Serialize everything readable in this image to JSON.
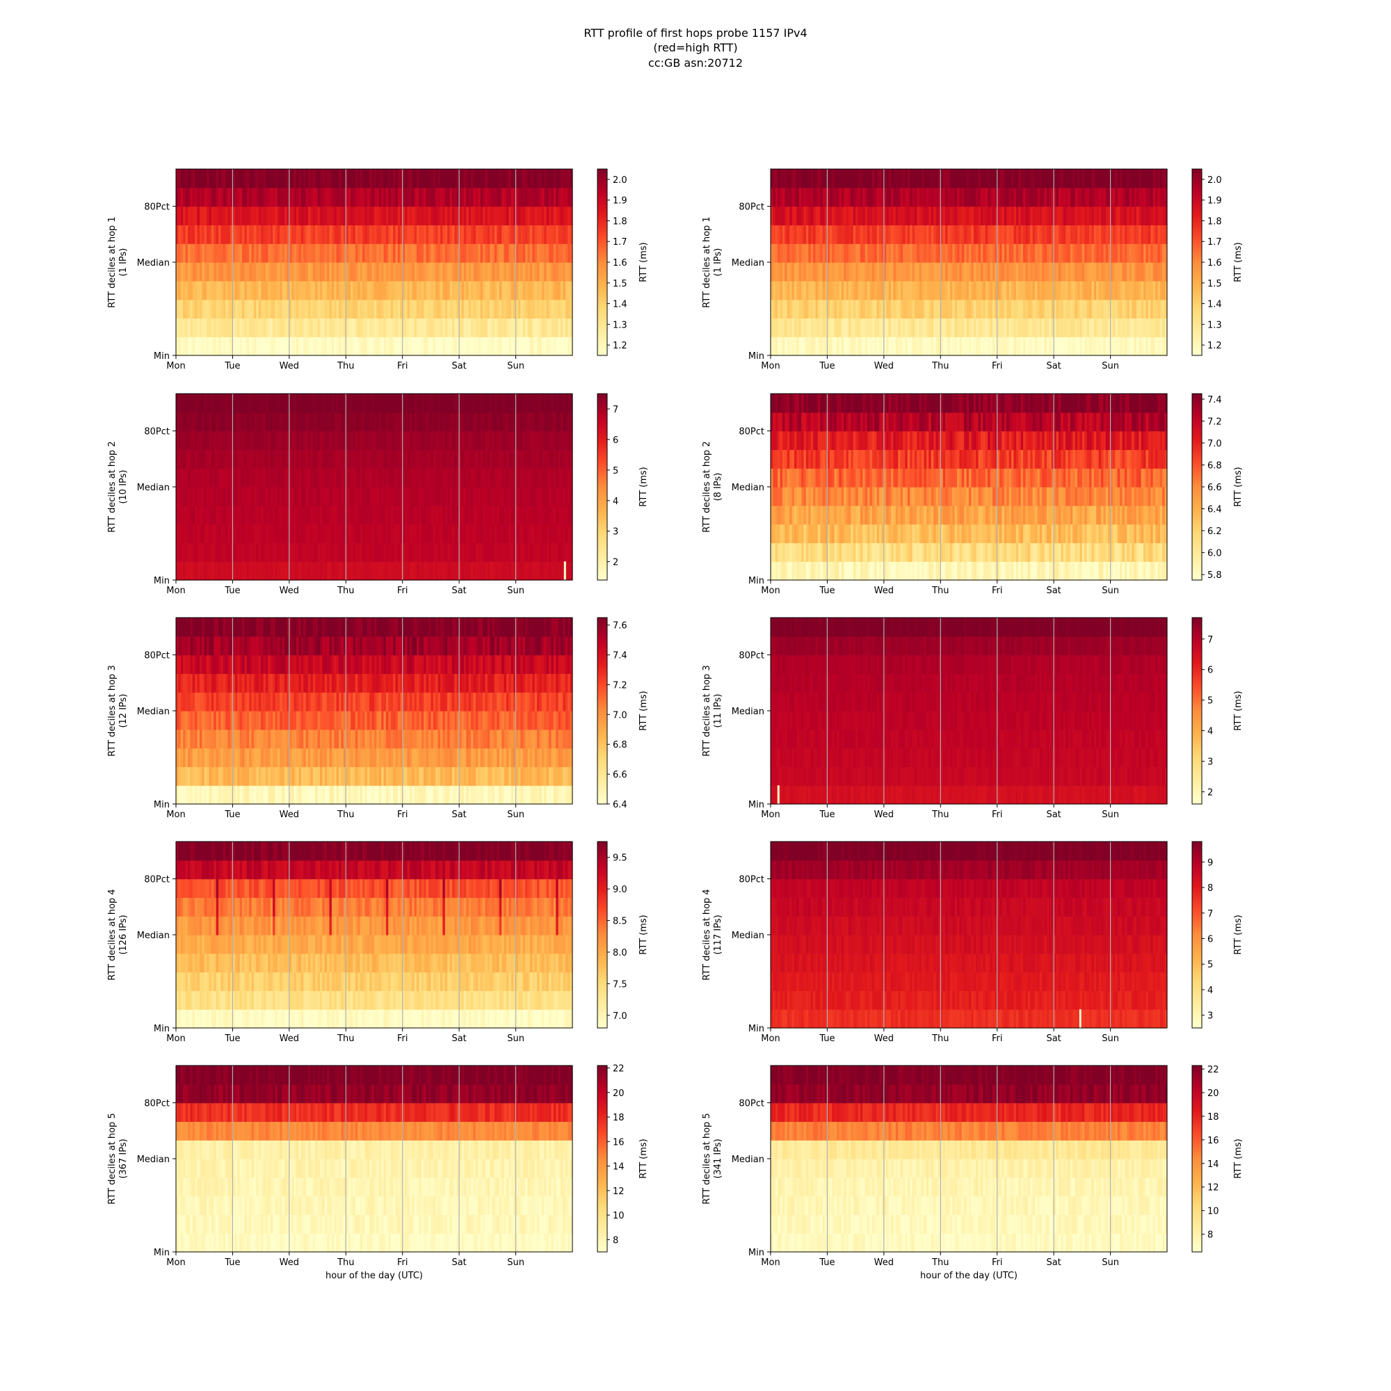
{
  "figure": {
    "title_lines": [
      "RTT profile of first hops probe 1157 IPv4",
      "(red=high RTT)",
      "cc:GB asn:20712"
    ]
  },
  "colors": {
    "colormap": [
      "#ffffcc",
      "#ffeda0",
      "#fed976",
      "#feb24c",
      "#fd8d3c",
      "#fc4e2a",
      "#e31a1c",
      "#bd0026",
      "#800026"
    ],
    "gridline": "#b0b0b0",
    "outlier": "#ffffcc"
  },
  "chart_data": [
    {
      "type": "heatmap",
      "row": 0,
      "col": 0,
      "hop": 1,
      "ylabel": [
        "RTT deciles at hop 1",
        "(1 IPs)"
      ],
      "xlabel": "",
      "xticks": [
        "Mon",
        "Tue",
        "Wed",
        "Thu",
        "Fri",
        "Sat",
        "Sun"
      ],
      "yticks": [
        "Min",
        "Median",
        "80Pct"
      ],
      "colorbar_label": "RTT (ms)",
      "colorbar_ticks": [
        "1.2",
        "1.3",
        "1.4",
        "1.5",
        "1.6",
        "1.7",
        "1.8",
        "1.9",
        "2.0"
      ],
      "range": [
        1.15,
        2.05
      ],
      "decile_fraction": [
        0.02,
        0.15,
        0.26,
        0.36,
        0.46,
        0.56,
        0.66,
        0.78,
        0.9,
        1.0
      ],
      "noise": 0.06,
      "weekly_dips": false,
      "outliers": []
    },
    {
      "type": "heatmap",
      "row": 0,
      "col": 1,
      "hop": 1,
      "ylabel": [
        "RTT deciles at hop 1",
        "(1 IPs)"
      ],
      "xlabel": "",
      "xticks": [
        "Mon",
        "Tue",
        "Wed",
        "Thu",
        "Fri",
        "Sat",
        "Sun"
      ],
      "yticks": [
        "Min",
        "Median",
        "80Pct"
      ],
      "colorbar_label": "RTT (ms)",
      "colorbar_ticks": [
        "1.2",
        "1.3",
        "1.4",
        "1.5",
        "1.6",
        "1.7",
        "1.8",
        "1.9",
        "2.0"
      ],
      "range": [
        1.15,
        2.05
      ],
      "decile_fraction": [
        0.03,
        0.16,
        0.27,
        0.37,
        0.47,
        0.57,
        0.67,
        0.79,
        0.9,
        1.0
      ],
      "noise": 0.06,
      "weekly_dips": false,
      "outliers": []
    },
    {
      "type": "heatmap",
      "row": 1,
      "col": 0,
      "hop": 2,
      "ylabel": [
        "RTT deciles at hop 2",
        "(10 IPs)"
      ],
      "xlabel": "",
      "xticks": [
        "Mon",
        "Tue",
        "Wed",
        "Thu",
        "Fri",
        "Sat",
        "Sun"
      ],
      "yticks": [
        "Min",
        "Median",
        "80Pct"
      ],
      "colorbar_label": "RTT (ms)",
      "colorbar_ticks": [
        "2",
        "3",
        "4",
        "5",
        "6",
        "7"
      ],
      "range": [
        1.4,
        7.5
      ],
      "decile_fraction": [
        0.82,
        0.86,
        0.87,
        0.88,
        0.89,
        0.9,
        0.92,
        0.94,
        0.97,
        1.0
      ],
      "noise": 0.02,
      "weekly_dips": false,
      "outliers": [
        {
          "day": 6.85,
          "decile": 0
        }
      ]
    },
    {
      "type": "heatmap",
      "row": 1,
      "col": 1,
      "hop": 2,
      "ylabel": [
        "RTT deciles at hop 2",
        "(8 IPs)"
      ],
      "xlabel": "",
      "xticks": [
        "Mon",
        "Tue",
        "Wed",
        "Thu",
        "Fri",
        "Sat",
        "Sun"
      ],
      "yticks": [
        "Min",
        "Median",
        "80Pct"
      ],
      "colorbar_label": "RTT (ms)",
      "colorbar_ticks": [
        "5.8",
        "6.0",
        "6.2",
        "6.4",
        "6.6",
        "6.8",
        "7.0",
        "7.2",
        "7.4"
      ],
      "range": [
        5.75,
        7.45
      ],
      "decile_fraction": [
        0.05,
        0.22,
        0.34,
        0.42,
        0.5,
        0.58,
        0.66,
        0.76,
        0.88,
        1.0
      ],
      "noise": 0.09,
      "weekly_dips": false,
      "outliers": []
    },
    {
      "type": "heatmap",
      "row": 2,
      "col": 0,
      "hop": 3,
      "ylabel": [
        "RTT deciles at hop 3",
        "(12 IPs)"
      ],
      "xlabel": "",
      "xticks": [
        "Mon",
        "Tue",
        "Wed",
        "Thu",
        "Fri",
        "Sat",
        "Sun"
      ],
      "yticks": [
        "Min",
        "Median",
        "80Pct"
      ],
      "colorbar_label": "RTT (ms)",
      "colorbar_ticks": [
        "6.4",
        "6.6",
        "6.8",
        "7.0",
        "7.2",
        "7.4",
        "7.6"
      ],
      "range": [
        6.4,
        7.65
      ],
      "decile_fraction": [
        0.05,
        0.35,
        0.45,
        0.52,
        0.59,
        0.66,
        0.74,
        0.84,
        0.93,
        1.0
      ],
      "noise": 0.07,
      "weekly_dips": false,
      "outliers": []
    },
    {
      "type": "heatmap",
      "row": 2,
      "col": 1,
      "hop": 3,
      "ylabel": [
        "RTT deciles at hop 3",
        "(11 IPs)"
      ],
      "xlabel": "",
      "xticks": [
        "Mon",
        "Tue",
        "Wed",
        "Thu",
        "Fri",
        "Sat",
        "Sun"
      ],
      "yticks": [
        "Min",
        "Median",
        "80Pct"
      ],
      "colorbar_label": "RTT (ms)",
      "colorbar_ticks": [
        "2",
        "3",
        "4",
        "5",
        "6",
        "7"
      ],
      "range": [
        1.6,
        7.7
      ],
      "decile_fraction": [
        0.8,
        0.84,
        0.85,
        0.86,
        0.87,
        0.88,
        0.89,
        0.9,
        0.94,
        1.0
      ],
      "noise": 0.02,
      "weekly_dips": false,
      "outliers": [
        {
          "day": 0.12,
          "decile": 0
        }
      ]
    },
    {
      "type": "heatmap",
      "row": 3,
      "col": 0,
      "hop": 4,
      "ylabel": [
        "RTT deciles at hop 4",
        "(126 IPs)"
      ],
      "xlabel": "",
      "xticks": [
        "Mon",
        "Tue",
        "Wed",
        "Thu",
        "Fri",
        "Sat",
        "Sun"
      ],
      "yticks": [
        "Min",
        "Median",
        "80Pct"
      ],
      "colorbar_label": "RTT (ms)",
      "colorbar_ticks": [
        "7.0",
        "7.5",
        "8.0",
        "8.5",
        "9.0",
        "9.5"
      ],
      "range": [
        6.8,
        9.75
      ],
      "decile_fraction": [
        0.02,
        0.2,
        0.28,
        0.34,
        0.4,
        0.46,
        0.53,
        0.62,
        0.85,
        1.0
      ],
      "noise": 0.06,
      "weekly_dips": true,
      "outliers": []
    },
    {
      "type": "heatmap",
      "row": 3,
      "col": 1,
      "hop": 4,
      "ylabel": [
        "RTT deciles at hop 4",
        "(117 IPs)"
      ],
      "xlabel": "",
      "xticks": [
        "Mon",
        "Tue",
        "Wed",
        "Thu",
        "Fri",
        "Sat",
        "Sun"
      ],
      "yticks": [
        "Min",
        "Median",
        "80Pct"
      ],
      "colorbar_label": "RTT (ms)",
      "colorbar_ticks": [
        "3",
        "4",
        "5",
        "6",
        "7",
        "8",
        "9"
      ],
      "range": [
        2.5,
        9.8
      ],
      "decile_fraction": [
        0.7,
        0.74,
        0.76,
        0.78,
        0.8,
        0.82,
        0.84,
        0.86,
        0.93,
        1.0
      ],
      "noise": 0.03,
      "weekly_dips": false,
      "outliers": [
        {
          "day": 5.45,
          "decile": 0
        }
      ]
    },
    {
      "type": "heatmap",
      "row": 4,
      "col": 0,
      "hop": 5,
      "ylabel": [
        "RTT deciles at hop 5",
        "(367 IPs)"
      ],
      "xlabel": "hour of the day (UTC)",
      "xticks": [
        "Mon",
        "Tue",
        "Wed",
        "Thu",
        "Fri",
        "Sat",
        "Sun"
      ],
      "yticks": [
        "Min",
        "Median",
        "80Pct"
      ],
      "colorbar_label": "RTT (ms)",
      "colorbar_ticks": [
        "8",
        "10",
        "12",
        "14",
        "16",
        "18",
        "20",
        "22"
      ],
      "range": [
        7.0,
        22.2
      ],
      "decile_fraction": [
        0.03,
        0.05,
        0.06,
        0.07,
        0.08,
        0.1,
        0.5,
        0.7,
        0.96,
        1.0
      ],
      "noise": 0.05,
      "weekly_dips": false,
      "outliers": []
    },
    {
      "type": "heatmap",
      "row": 4,
      "col": 1,
      "hop": 5,
      "ylabel": [
        "RTT deciles at hop 5",
        "(341 IPs)"
      ],
      "xlabel": "hour of the day (UTC)",
      "xticks": [
        "Mon",
        "Tue",
        "Wed",
        "Thu",
        "Fri",
        "Sat",
        "Sun"
      ],
      "yticks": [
        "Min",
        "Median",
        "80Pct"
      ],
      "colorbar_label": "RTT (ms)",
      "colorbar_ticks": [
        "8",
        "10",
        "12",
        "14",
        "16",
        "18",
        "20",
        "22"
      ],
      "range": [
        6.5,
        22.3
      ],
      "decile_fraction": [
        0.03,
        0.05,
        0.06,
        0.07,
        0.09,
        0.15,
        0.52,
        0.72,
        0.96,
        1.0
      ],
      "noise": 0.05,
      "weekly_dips": false,
      "outliers": []
    }
  ]
}
